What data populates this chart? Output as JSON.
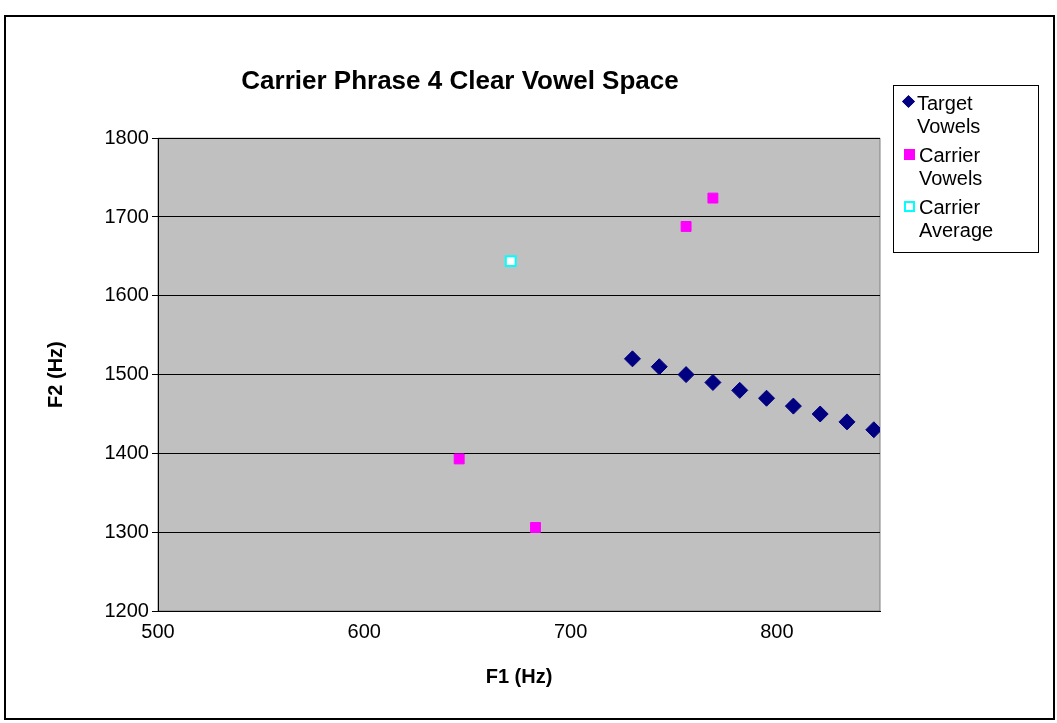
{
  "chart_data": {
    "type": "scatter",
    "title": "Carrier Phrase 4 Clear Vowel Space",
    "xlabel": "F1 (Hz)",
    "ylabel": "F2 (Hz)",
    "xlim": [
      500,
      850
    ],
    "xticks": [
      500,
      600,
      700,
      800
    ],
    "ylim": [
      1200,
      1800
    ],
    "yticks": [
      1200,
      1300,
      1400,
      1500,
      1600,
      1700,
      1800
    ],
    "grid": "y",
    "legend": "right",
    "series": [
      {
        "name": "Target Vowels",
        "color": "#000080",
        "marker": "diamond",
        "x": [
          730,
          743,
          756,
          769,
          782,
          795,
          808,
          821,
          834,
          847
        ],
        "values": [
          1520,
          1510,
          1500,
          1490,
          1480,
          1470,
          1460,
          1450,
          1440,
          1430
        ]
      },
      {
        "name": "Carrier Vowels",
        "color": "#ff00ff",
        "marker": "square",
        "x": [
          756,
          769,
          646,
          683
        ],
        "values": [
          1688,
          1724,
          1393,
          1306
        ]
      },
      {
        "name": "Carrier Average",
        "color": "#00ffff",
        "marker": "square",
        "x": [
          671
        ],
        "values": [
          1644
        ]
      }
    ]
  }
}
